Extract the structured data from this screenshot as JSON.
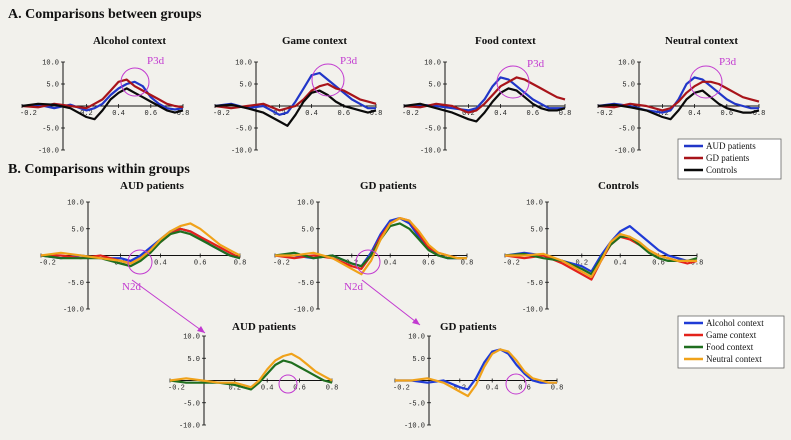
{
  "colors": {
    "aud_patients": "#2136c8",
    "gd_patients": "#a8141a",
    "controls": "#0a0a0a",
    "alcohol_context": "#1f3bd6",
    "game_context": "#e3221b",
    "food_context": "#1f6e1f",
    "neutral_context": "#f0a21a",
    "annotation": "#c23ad0"
  },
  "section_a": {
    "title": "A. Comparisons between groups"
  },
  "section_b": {
    "title": "B. Comparisons within groups"
  },
  "legend_groups": [
    "AUD patients",
    "GD patients",
    "Controls"
  ],
  "legend_contexts": [
    "Alcohol context",
    "Game context",
    "Food context",
    "Neutral context"
  ],
  "chart_data": [
    {
      "id": "alcohol",
      "type": "line",
      "title": "Alcohol context",
      "annotation": "P3d",
      "x_ticks": [
        "-0.2",
        "0.2",
        "0.4",
        "0.6",
        "0.8"
      ],
      "y_ticks": [
        "10.0",
        "5.0",
        "-5.0",
        "-10.0"
      ],
      "xlim": [
        -0.2,
        0.8
      ],
      "ylim": [
        -10,
        10
      ],
      "xlabel": "",
      "ylabel": "",
      "x": [
        -0.2,
        -0.1,
        0.0,
        0.1,
        0.2,
        0.25,
        0.3,
        0.35,
        0.4,
        0.45,
        0.5,
        0.55,
        0.6,
        0.65,
        0.7,
        0.75,
        0.8
      ],
      "series": [
        {
          "name": "AUD patients",
          "color": "#2136c8",
          "values": [
            0,
            0.3,
            -0.5,
            0.3,
            -1.0,
            -0.5,
            0.5,
            2.5,
            4.0,
            5.0,
            5.5,
            4.5,
            2.0,
            0.5,
            -0.5,
            -0.8,
            -0.5
          ]
        },
        {
          "name": "GD patients",
          "color": "#a8141a",
          "values": [
            0,
            -0.3,
            0.5,
            0.0,
            -0.5,
            0.5,
            1.5,
            3.5,
            5.5,
            6.0,
            4.5,
            3.5,
            2.5,
            1.5,
            0.5,
            0.0,
            -0.3
          ]
        },
        {
          "name": "Controls",
          "color": "#0a0a0a",
          "values": [
            0,
            0.5,
            0.3,
            -0.5,
            -2.5,
            -3.0,
            -1.0,
            1.5,
            3.0,
            4.0,
            3.0,
            2.0,
            1.0,
            0.0,
            -1.0,
            -1.5,
            -1.0
          ]
        }
      ]
    },
    {
      "id": "game",
      "type": "line",
      "title": "Game context",
      "annotation": "P3d",
      "x_ticks": [
        "-0.2",
        "0.2",
        "0.4",
        "0.6",
        "0.8"
      ],
      "y_ticks": [
        "10.0",
        "5.0",
        "-5.0",
        "-10.0"
      ],
      "xlim": [
        -0.2,
        0.8
      ],
      "ylim": [
        -10,
        10
      ],
      "xlabel": "",
      "ylabel": "",
      "x": [
        -0.2,
        -0.1,
        0.0,
        0.1,
        0.2,
        0.25,
        0.3,
        0.35,
        0.4,
        0.45,
        0.5,
        0.55,
        0.6,
        0.65,
        0.7,
        0.75,
        0.8
      ],
      "series": [
        {
          "name": "AUD patients",
          "color": "#2136c8",
          "values": [
            0,
            0.5,
            -0.5,
            0.0,
            -2.0,
            -1.5,
            1.0,
            4.0,
            7.0,
            7.5,
            6.0,
            4.5,
            3.0,
            1.5,
            0.5,
            -0.5,
            -0.5
          ]
        },
        {
          "name": "GD patients",
          "color": "#a8141a",
          "values": [
            0,
            -0.5,
            0.0,
            0.5,
            -1.0,
            -0.5,
            0.0,
            1.5,
            3.5,
            4.5,
            5.0,
            4.0,
            3.5,
            2.5,
            1.5,
            1.0,
            0.5
          ]
        },
        {
          "name": "Controls",
          "color": "#0a0a0a",
          "values": [
            0,
            0.3,
            -0.5,
            -1.5,
            -3.5,
            -4.5,
            -2.0,
            1.0,
            3.0,
            3.5,
            2.5,
            1.0,
            0.0,
            -0.5,
            -1.0,
            -1.5,
            -1.0
          ]
        }
      ]
    },
    {
      "id": "food",
      "type": "line",
      "title": "Food context",
      "annotation": "P3d",
      "x_ticks": [
        "-0.2",
        "0.2",
        "0.4",
        "0.6",
        "0.8"
      ],
      "y_ticks": [
        "10.0",
        "5.0",
        "-5.0",
        "-10.0"
      ],
      "xlim": [
        -0.2,
        0.8
      ],
      "ylim": [
        -10,
        10
      ],
      "xlabel": "",
      "ylabel": "",
      "x": [
        -0.2,
        -0.1,
        0.0,
        0.1,
        0.2,
        0.25,
        0.3,
        0.35,
        0.4,
        0.45,
        0.5,
        0.55,
        0.6,
        0.65,
        0.7,
        0.75,
        0.8
      ],
      "series": [
        {
          "name": "AUD patients",
          "color": "#2136c8",
          "values": [
            0,
            0.3,
            0.0,
            -0.5,
            -1.0,
            -0.5,
            1.5,
            4.5,
            6.5,
            6.0,
            4.5,
            3.0,
            1.5,
            0.5,
            -0.5,
            -0.5,
            -0.5
          ]
        },
        {
          "name": "GD patients",
          "color": "#a8141a",
          "values": [
            0,
            -0.3,
            0.5,
            0.0,
            -1.5,
            -1.0,
            0.5,
            2.5,
            4.5,
            5.5,
            6.5,
            6.0,
            5.0,
            4.0,
            3.0,
            2.0,
            1.5
          ]
        },
        {
          "name": "Controls",
          "color": "#0a0a0a",
          "values": [
            0,
            0.5,
            -0.5,
            -1.5,
            -3.0,
            -3.5,
            -1.5,
            1.0,
            3.0,
            4.0,
            3.5,
            2.0,
            0.5,
            -0.5,
            -1.0,
            -1.0,
            -0.5
          ]
        }
      ]
    },
    {
      "id": "neutral",
      "type": "line",
      "title": "Neutral context",
      "annotation": "P3d",
      "x_ticks": [
        "-0.2",
        "0.2",
        "0.4",
        "0.6",
        "0.8"
      ],
      "y_ticks": [
        "10.0",
        "5.0",
        "-5.0",
        "-10.0"
      ],
      "xlim": [
        -0.2,
        0.8
      ],
      "ylim": [
        -10,
        10
      ],
      "xlabel": "",
      "ylabel": "",
      "x": [
        -0.2,
        -0.1,
        0.0,
        0.1,
        0.2,
        0.25,
        0.3,
        0.35,
        0.4,
        0.45,
        0.5,
        0.55,
        0.6,
        0.65,
        0.7,
        0.75,
        0.8
      ],
      "series": [
        {
          "name": "AUD patients",
          "color": "#2136c8",
          "values": [
            0,
            0.5,
            0.0,
            -1.0,
            -1.5,
            -1.0,
            1.5,
            5.0,
            6.5,
            6.0,
            4.5,
            3.0,
            1.5,
            0.5,
            0.0,
            -0.5,
            -0.5
          ]
        },
        {
          "name": "GD patients",
          "color": "#a8141a",
          "values": [
            0,
            -0.3,
            0.5,
            0.0,
            -1.0,
            -0.5,
            1.0,
            3.0,
            4.5,
            5.5,
            5.5,
            5.0,
            4.0,
            3.0,
            2.0,
            1.5,
            1.0
          ]
        },
        {
          "name": "Controls",
          "color": "#0a0a0a",
          "values": [
            0,
            0.3,
            -0.3,
            -1.0,
            -2.5,
            -3.0,
            -1.0,
            1.5,
            3.0,
            3.5,
            2.0,
            0.5,
            -0.5,
            -1.0,
            -1.5,
            -1.5,
            -1.0
          ]
        }
      ]
    },
    {
      "id": "aud_b",
      "type": "line",
      "title": "AUD patients",
      "annotation": "N2d",
      "x_ticks": [
        "-0.2",
        "0.2",
        "0.4",
        "0.6",
        "0.8"
      ],
      "y_ticks": [
        "10.0",
        "5.0",
        "-5.0",
        "-10.0"
      ],
      "xlim": [
        -0.2,
        0.8
      ],
      "ylim": [
        -10,
        10
      ],
      "xlabel": "",
      "ylabel": "",
      "x": [
        -0.2,
        -0.1,
        0.0,
        0.1,
        0.2,
        0.25,
        0.3,
        0.35,
        0.4,
        0.45,
        0.5,
        0.55,
        0.6,
        0.65,
        0.7,
        0.75,
        0.8
      ],
      "series": [
        {
          "name": "Alcohol context",
          "color": "#1f3bd6",
          "values": [
            0,
            -0.5,
            0.0,
            -0.5,
            -0.5,
            -1.0,
            0.0,
            1.5,
            3.0,
            4.5,
            5.0,
            4.5,
            3.5,
            2.0,
            1.0,
            0.0,
            -0.5
          ]
        },
        {
          "name": "Game context",
          "color": "#e3221b",
          "values": [
            0,
            0.0,
            -0.5,
            0.0,
            -1.0,
            -1.5,
            -0.5,
            1.0,
            2.5,
            4.0,
            5.0,
            4.5,
            3.5,
            2.5,
            1.5,
            0.5,
            -0.5
          ]
        },
        {
          "name": "Food context",
          "color": "#1f6e1f",
          "values": [
            0,
            -0.5,
            -0.5,
            -0.5,
            -1.5,
            -2.0,
            -1.0,
            0.5,
            2.5,
            4.0,
            4.5,
            4.0,
            3.0,
            2.0,
            1.0,
            0.0,
            -0.5
          ]
        },
        {
          "name": "Neutral context",
          "color": "#f0a21a",
          "values": [
            0,
            0.5,
            0.0,
            -0.5,
            -1.0,
            -1.5,
            -0.5,
            1.0,
            3.0,
            4.5,
            5.5,
            6.0,
            5.0,
            3.5,
            2.0,
            1.0,
            0.0
          ]
        }
      ]
    },
    {
      "id": "gd_b",
      "type": "line",
      "title": "GD patients",
      "annotation": "N2d",
      "x_ticks": [
        "-0.2",
        "0.2",
        "0.4",
        "0.6",
        "0.8"
      ],
      "y_ticks": [
        "10.0",
        "5.0",
        "-5.0",
        "-10.0"
      ],
      "xlim": [
        -0.2,
        0.8
      ],
      "ylim": [
        -10,
        10
      ],
      "xlabel": "",
      "ylabel": "",
      "x": [
        -0.2,
        -0.1,
        0.0,
        0.1,
        0.2,
        0.25,
        0.3,
        0.35,
        0.4,
        0.45,
        0.5,
        0.55,
        0.6,
        0.65,
        0.7,
        0.75,
        0.8
      ],
      "series": [
        {
          "name": "Alcohol context",
          "color": "#1f3bd6",
          "values": [
            0,
            0.0,
            -0.5,
            0.0,
            -1.5,
            -2.0,
            0.5,
            4.0,
            6.5,
            7.0,
            6.0,
            3.5,
            1.5,
            0.0,
            -0.5,
            -0.5,
            -0.5
          ]
        },
        {
          "name": "Game context",
          "color": "#e3221b",
          "values": [
            0,
            -0.5,
            0.0,
            -0.5,
            -2.0,
            -2.5,
            0.0,
            3.5,
            6.0,
            7.0,
            6.5,
            4.0,
            1.5,
            0.5,
            0.0,
            -0.5,
            -0.5
          ]
        },
        {
          "name": "Food context",
          "color": "#1f6e1f",
          "values": [
            0,
            0.5,
            -0.5,
            0.0,
            -1.5,
            -2.0,
            0.0,
            3.0,
            5.5,
            6.0,
            5.0,
            3.0,
            1.0,
            0.0,
            -0.5,
            -0.5,
            -0.5
          ]
        },
        {
          "name": "Neutral context",
          "color": "#f0a21a",
          "values": [
            0,
            0.0,
            0.5,
            -0.5,
            -2.5,
            -3.5,
            -1.0,
            3.0,
            6.0,
            7.0,
            6.5,
            4.5,
            2.0,
            0.5,
            0.0,
            -0.5,
            -0.5
          ]
        }
      ]
    },
    {
      "id": "controls_b",
      "type": "line",
      "title": "Controls",
      "annotation": "",
      "x_ticks": [
        "-0.2",
        "0.2",
        "0.4",
        "0.6",
        "0.8"
      ],
      "y_ticks": [
        "10.0",
        "5.0",
        "-5.0",
        "-10.0"
      ],
      "xlim": [
        -0.2,
        0.8
      ],
      "ylim": [
        -10,
        10
      ],
      "xlabel": "",
      "ylabel": "",
      "x": [
        -0.2,
        -0.1,
        0.0,
        0.1,
        0.2,
        0.25,
        0.3,
        0.35,
        0.4,
        0.45,
        0.5,
        0.55,
        0.6,
        0.65,
        0.7,
        0.75,
        0.8
      ],
      "series": [
        {
          "name": "Alcohol context",
          "color": "#1f3bd6",
          "values": [
            0,
            0.5,
            0.0,
            -1.0,
            -2.0,
            -3.0,
            0.0,
            2.5,
            4.5,
            5.5,
            4.0,
            2.5,
            1.0,
            0.0,
            -0.5,
            -1.0,
            -1.0
          ]
        },
        {
          "name": "Game context",
          "color": "#e3221b",
          "values": [
            0,
            -0.5,
            0.0,
            -1.5,
            -3.5,
            -4.5,
            -1.0,
            2.0,
            3.5,
            3.0,
            2.0,
            1.0,
            0.0,
            -0.5,
            -1.0,
            -1.5,
            -1.0
          ]
        },
        {
          "name": "Food context",
          "color": "#1f6e1f",
          "values": [
            0,
            0.3,
            -0.5,
            -1.0,
            -2.5,
            -3.5,
            -0.5,
            2.0,
            3.5,
            3.5,
            2.0,
            0.5,
            -0.5,
            -1.0,
            -1.0,
            -1.0,
            -0.5
          ]
        },
        {
          "name": "Neutral context",
          "color": "#f0a21a",
          "values": [
            0,
            0.0,
            0.3,
            -1.0,
            -3.0,
            -4.0,
            -1.0,
            2.5,
            4.0,
            3.5,
            2.5,
            1.0,
            0.0,
            -0.5,
            -1.0,
            -1.0,
            -1.0
          ]
        }
      ]
    },
    {
      "id": "aud_c",
      "type": "line",
      "title": "AUD patients",
      "annotation": "",
      "x_ticks": [
        "-0.2",
        "0.2",
        "0.4",
        "0.6",
        "0.8"
      ],
      "y_ticks": [
        "10.0",
        "5.0",
        "-5.0",
        "-10.0"
      ],
      "xlim": [
        -0.2,
        0.8
      ],
      "ylim": [
        -10,
        10
      ],
      "xlabel": "",
      "ylabel": "",
      "x": [
        -0.2,
        -0.1,
        0.0,
        0.1,
        0.2,
        0.25,
        0.3,
        0.35,
        0.4,
        0.45,
        0.5,
        0.55,
        0.6,
        0.65,
        0.7,
        0.75,
        0.8
      ],
      "series": [
        {
          "name": "Food context",
          "color": "#1f6e1f",
          "values": [
            0,
            -0.5,
            -0.5,
            -0.5,
            -1.0,
            -1.5,
            -2.0,
            -0.5,
            1.5,
            3.5,
            4.5,
            4.0,
            3.0,
            2.0,
            1.0,
            0.0,
            -0.5
          ]
        },
        {
          "name": "Neutral context",
          "color": "#f0a21a",
          "values": [
            0,
            0.5,
            0.0,
            -0.5,
            -0.5,
            -1.0,
            -1.5,
            0.0,
            2.5,
            4.5,
            5.5,
            6.0,
            5.0,
            3.5,
            2.0,
            1.0,
            0.0
          ]
        }
      ]
    },
    {
      "id": "gd_c",
      "type": "line",
      "title": "GD patients",
      "annotation": "",
      "x_ticks": [
        "-0.2",
        "0.2",
        "0.4",
        "0.6",
        "0.8"
      ],
      "y_ticks": [
        "10.0",
        "5.0",
        "-5.0",
        "-10.0"
      ],
      "xlim": [
        -0.2,
        0.8
      ],
      "ylim": [
        -10,
        10
      ],
      "xlabel": "",
      "ylabel": "",
      "x": [
        -0.2,
        -0.1,
        0.0,
        0.1,
        0.2,
        0.25,
        0.3,
        0.35,
        0.4,
        0.45,
        0.5,
        0.55,
        0.6,
        0.65,
        0.7,
        0.75,
        0.8
      ],
      "series": [
        {
          "name": "Alcohol context",
          "color": "#1f3bd6",
          "values": [
            0,
            0.0,
            -0.5,
            0.0,
            -1.5,
            -2.0,
            0.5,
            4.0,
            6.5,
            7.0,
            6.0,
            3.5,
            1.5,
            0.0,
            -0.5,
            -0.5,
            -0.5
          ]
        },
        {
          "name": "Neutral context",
          "color": "#f0a21a",
          "values": [
            0,
            0.0,
            0.5,
            -0.5,
            -2.5,
            -3.5,
            -1.0,
            3.0,
            6.0,
            7.0,
            6.5,
            4.5,
            2.0,
            0.5,
            0.0,
            -0.5,
            -0.5
          ]
        }
      ]
    }
  ]
}
